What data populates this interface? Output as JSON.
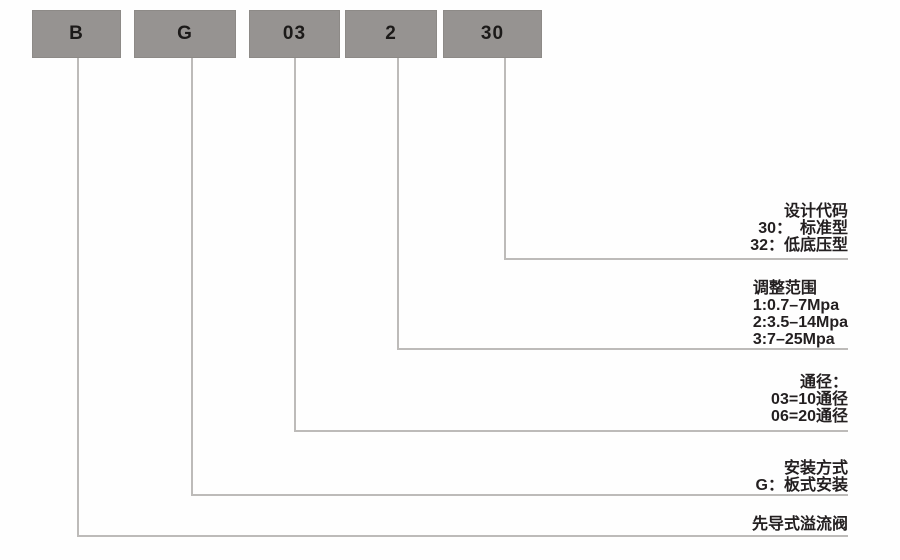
{
  "diagram": {
    "title_semantic": "valve-model-code-legend",
    "code_boxes": [
      {
        "label": "B"
      },
      {
        "label": "G"
      },
      {
        "label": "03"
      },
      {
        "label": "2"
      },
      {
        "label": "30"
      }
    ],
    "legend": [
      {
        "id": "design-code",
        "title": "设计代码",
        "lines": [
          "30：　标准型",
          "32：低底压型"
        ]
      },
      {
        "id": "adjust-range",
        "title": "调整范围",
        "lines": [
          "1:0.7–7Mpa",
          "2:3.5–14Mpa",
          "3:7–25Mpa"
        ]
      },
      {
        "id": "diameter",
        "title": "通径：",
        "lines": [
          "03=10通径",
          "06=20通径"
        ]
      },
      {
        "id": "mounting",
        "title": "安装方式",
        "lines": [
          "G：板式安装"
        ]
      },
      {
        "id": "valve-name",
        "title": "先导式溢流阀",
        "lines": []
      }
    ],
    "colors": {
      "box_fill": "#969391",
      "box_text": "#1c1a19",
      "line": "#bdbbb9",
      "text": "#231f20"
    }
  }
}
